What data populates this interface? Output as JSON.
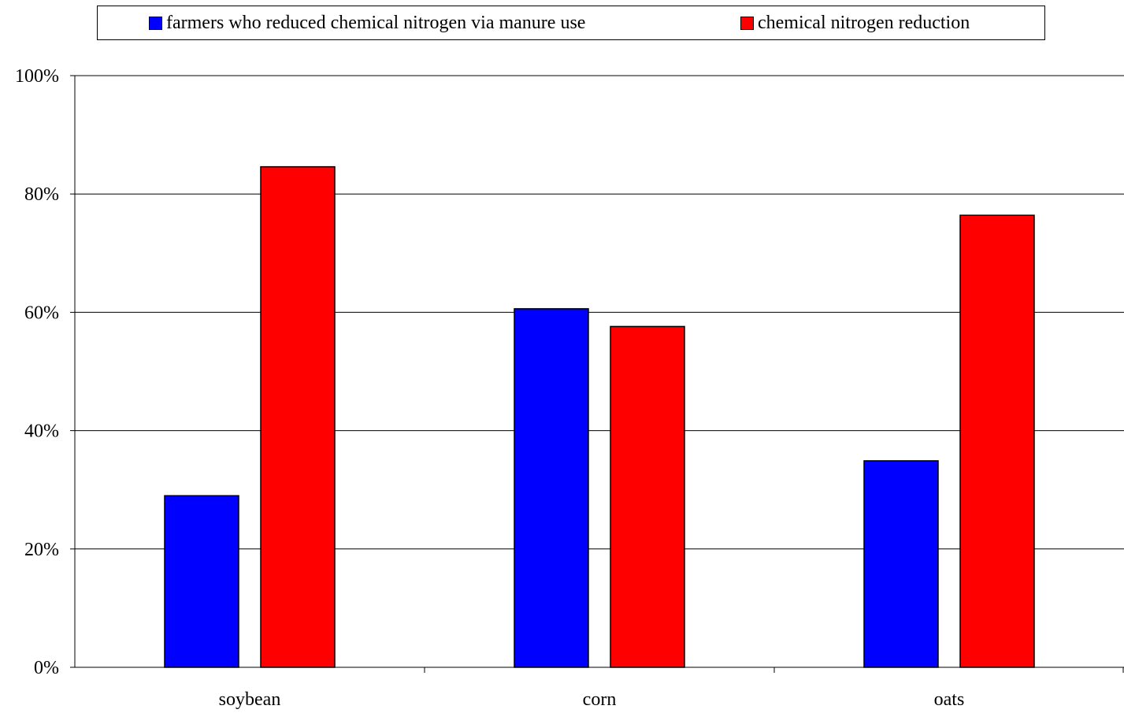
{
  "chart_data": {
    "type": "bar",
    "categories": [
      "soybean",
      "corn",
      "oats"
    ],
    "series": [
      {
        "name": "farmers who reduced chemical nitrogen via manure use",
        "color": "#0000ff",
        "values": [
          29,
          60.6,
          34.9
        ]
      },
      {
        "name": "chemical nitrogen reduction",
        "color": "#ff0000",
        "values": [
          84.6,
          57.6,
          76.4
        ]
      }
    ],
    "yticks": [
      "0%",
      "20%",
      "40%",
      "60%",
      "80%",
      "100%"
    ],
    "ylim": [
      0,
      100
    ],
    "grid": true,
    "legend_position": "top"
  }
}
